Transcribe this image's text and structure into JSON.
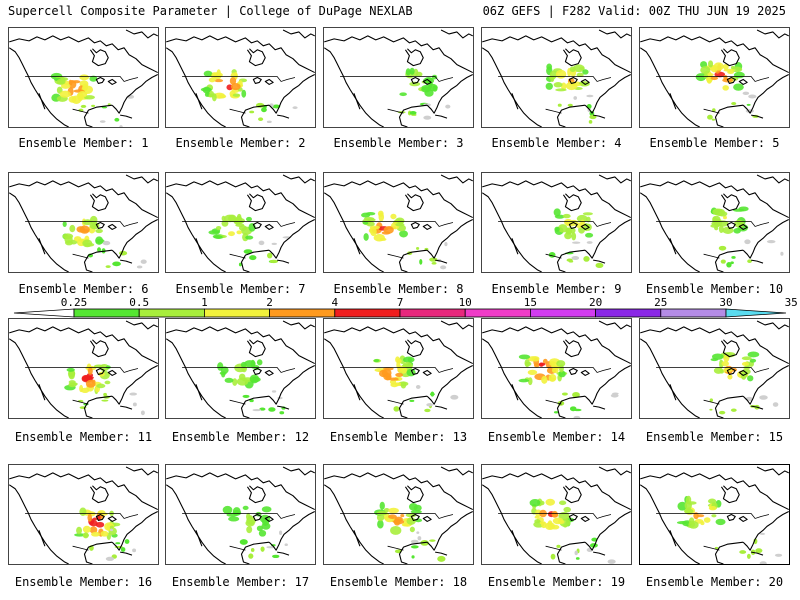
{
  "header": {
    "title_left": "Supercell Composite Parameter | College of DuPage NEXLAB",
    "title_right": "06Z GEFS | F282 Valid: 00Z THU JUN 19 2025"
  },
  "members": [
    {
      "label": "Ensemble Member: 1",
      "intensity": 0.8
    },
    {
      "label": "Ensemble Member: 2",
      "intensity": 0.9
    },
    {
      "label": "Ensemble Member: 3",
      "intensity": 0.3
    },
    {
      "label": "Ensemble Member: 4",
      "intensity": 0.6
    },
    {
      "label": "Ensemble Member: 5",
      "intensity": 0.8
    },
    {
      "label": "Ensemble Member: 6",
      "intensity": 0.6
    },
    {
      "label": "Ensemble Member: 7",
      "intensity": 0.5
    },
    {
      "label": "Ensemble Member: 8",
      "intensity": 0.8
    },
    {
      "label": "Ensemble Member: 9",
      "intensity": 0.5
    },
    {
      "label": "Ensemble Member: 10",
      "intensity": 0.4
    },
    {
      "label": "Ensemble Member: 11",
      "intensity": 0.8
    },
    {
      "label": "Ensemble Member: 12",
      "intensity": 0.3
    },
    {
      "label": "Ensemble Member: 13",
      "intensity": 0.8
    },
    {
      "label": "Ensemble Member: 14",
      "intensity": 0.9
    },
    {
      "label": "Ensemble Member: 15",
      "intensity": 0.7
    },
    {
      "label": "Ensemble Member: 16",
      "intensity": 0.9
    },
    {
      "label": "Ensemble Member: 17",
      "intensity": 0.3
    },
    {
      "label": "Ensemble Member: 18",
      "intensity": 0.7
    },
    {
      "label": "Ensemble Member: 19",
      "intensity": 0.8
    },
    {
      "label": "Ensemble Member: 20",
      "intensity": 0.7
    }
  ],
  "colorbar": {
    "labels": [
      "0.25",
      "0.5",
      "1",
      "2",
      "4",
      "7",
      "10",
      "15",
      "20",
      "25",
      "30",
      "35"
    ],
    "colors": [
      "#ffffff",
      "#55e632",
      "#a8ee3c",
      "#f2f23c",
      "#ff9a1e",
      "#f01e1e",
      "#e8287d",
      "#f03cc8",
      "#d23cf0",
      "#8a28e6",
      "#b48ce6",
      "#5adcf0"
    ]
  }
}
